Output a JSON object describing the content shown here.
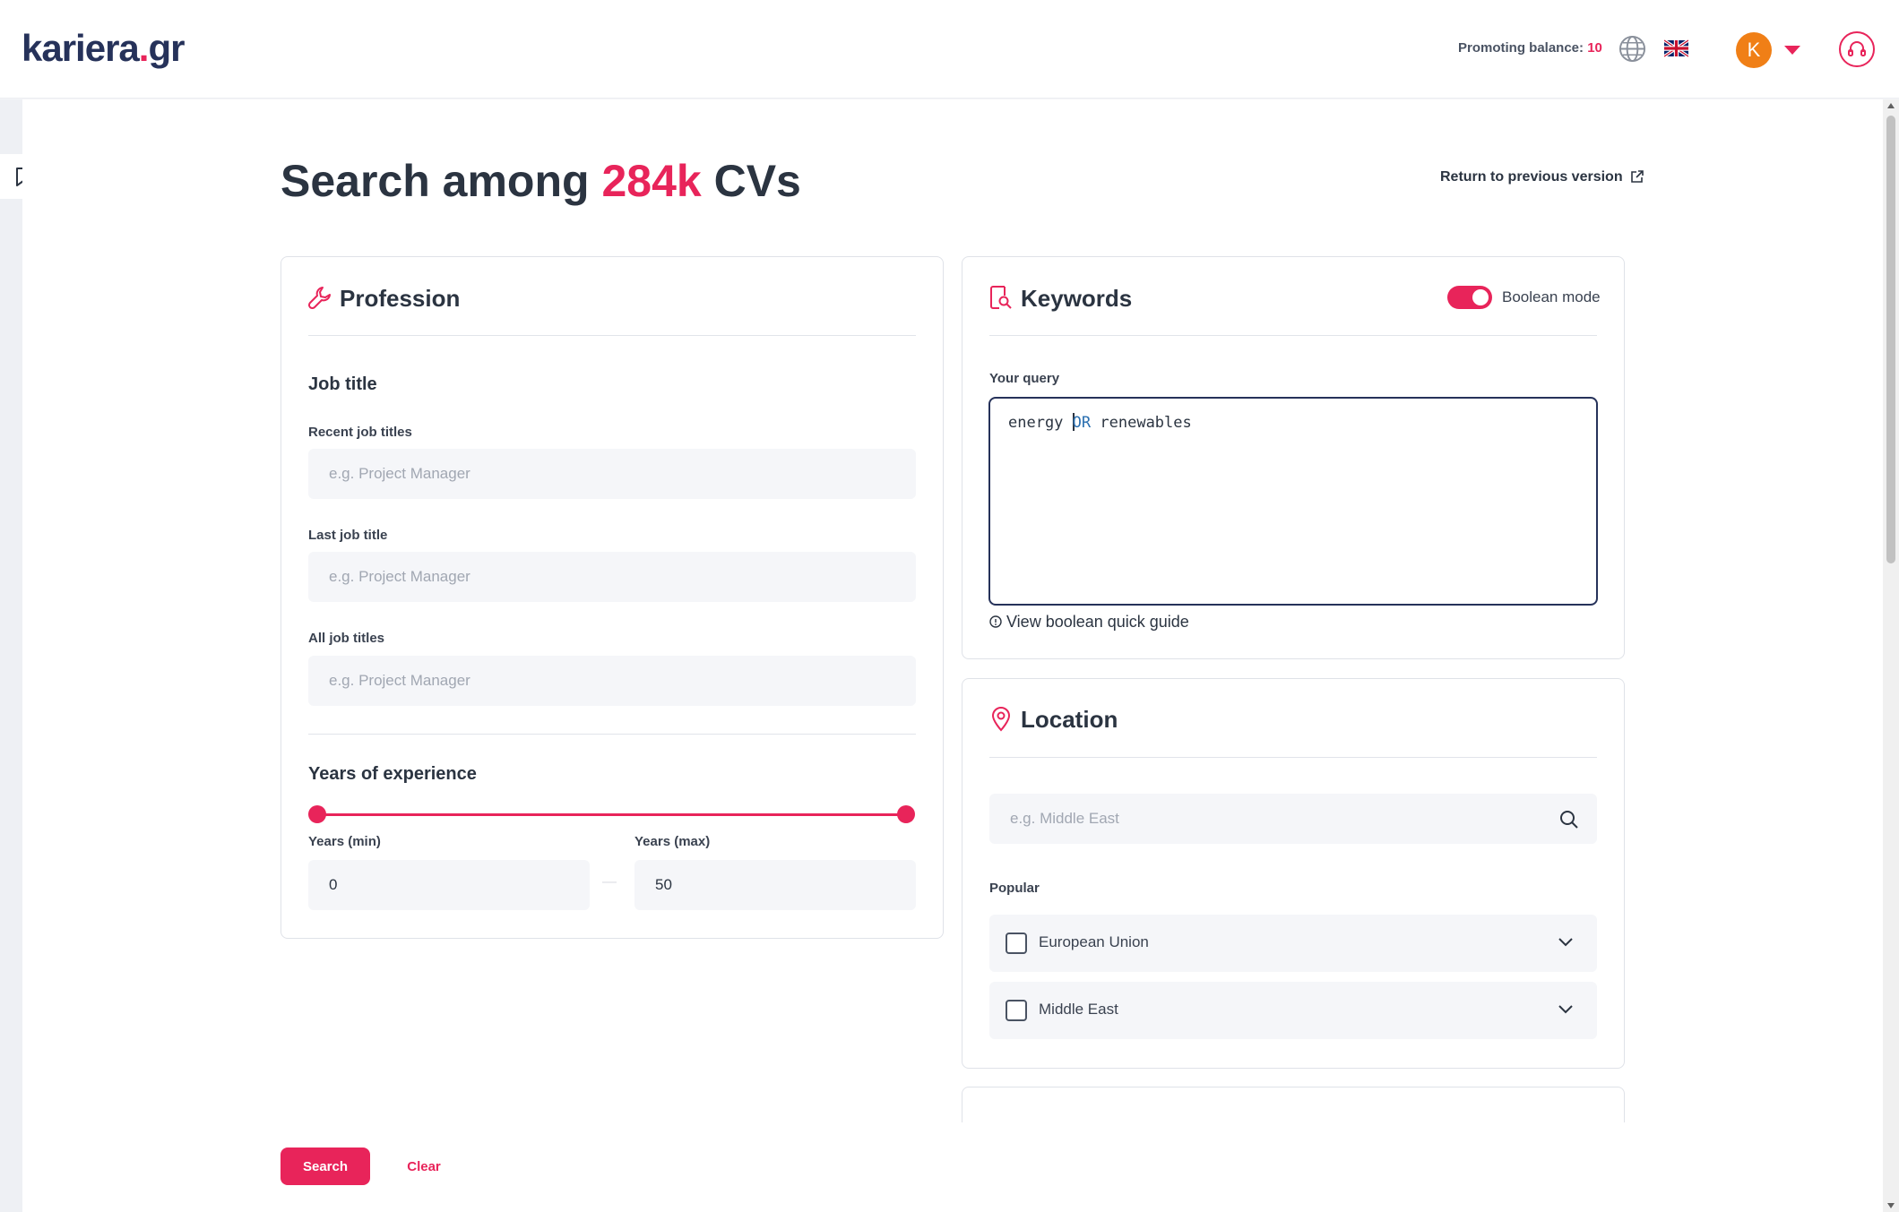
{
  "header": {
    "logo_main": "kariera",
    "logo_dot": ".",
    "logo_tld": "gr",
    "balance_label": "Promoting balance:",
    "balance_value": "10",
    "avatar_letter": "K"
  },
  "page": {
    "title_prefix": "Search among ",
    "title_count": "284k",
    "title_suffix": " CVs",
    "return_link": "Return to previous version"
  },
  "profession": {
    "title": "Profession",
    "job_title_heading": "Job title",
    "recent_label": "Recent job titles",
    "recent_placeholder": "e.g. Project Manager",
    "last_label": "Last job title",
    "last_placeholder": "e.g. Project Manager",
    "all_label": "All job titles",
    "all_placeholder": "e.g. Project Manager",
    "experience_heading": "Years of experience",
    "years_min_label": "Years (min)",
    "years_min_value": "0",
    "years_max_label": "Years (max)",
    "years_max_value": "50",
    "range_separator": "—"
  },
  "keywords": {
    "title": "Keywords",
    "boolean_label": "Boolean mode",
    "boolean_on": true,
    "query_label": "Your query",
    "query_before": "energy ",
    "query_op_first": "O",
    "query_op_rest": "R",
    "query_after": " renewables",
    "guide_link": "View boolean quick guide"
  },
  "location": {
    "title": "Location",
    "search_placeholder": "e.g. Middle East",
    "popular_label": "Popular",
    "items": [
      {
        "label": "European Union"
      },
      {
        "label": "Middle East"
      }
    ]
  },
  "actions": {
    "search_label": "Search",
    "clear_label": "Clear"
  },
  "colors": {
    "accent": "#e8245a",
    "navy": "#26325a",
    "avatar": "#f07f16"
  },
  "icons": [
    "globe-icon",
    "uk-flag-icon",
    "chevron-down-icon",
    "headset-icon",
    "bookmark-icon",
    "external-link-icon",
    "wrench-icon",
    "document-search-icon",
    "location-pin-icon",
    "info-icon",
    "search-icon"
  ]
}
